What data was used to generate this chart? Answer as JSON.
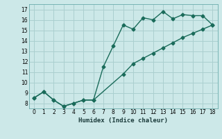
{
  "title": "",
  "xlabel": "Humidex (Indice chaleur)",
  "ylabel": "",
  "bg_color": "#cce8e8",
  "line_color": "#1a6b5a",
  "grid_color": "#aacfcf",
  "xlim": [
    -0.5,
    18.5
  ],
  "ylim": [
    7.5,
    17.5
  ],
  "xticks": [
    0,
    1,
    2,
    3,
    4,
    5,
    6,
    7,
    8,
    9,
    10,
    11,
    12,
    13,
    14,
    15,
    16,
    17,
    18
  ],
  "yticks": [
    8,
    9,
    10,
    11,
    12,
    13,
    14,
    15,
    16,
    17
  ],
  "line1_x": [
    0,
    1,
    2,
    3,
    4,
    5,
    6,
    7,
    8,
    9,
    10,
    11,
    12,
    13,
    14,
    15,
    16,
    17,
    18
  ],
  "line1_y": [
    8.5,
    9.1,
    8.3,
    7.7,
    8.0,
    8.3,
    8.3,
    11.5,
    13.5,
    15.5,
    15.1,
    16.2,
    16.0,
    16.8,
    16.1,
    16.5,
    16.4,
    16.4,
    15.5
  ],
  "line2_x": [
    0,
    1,
    2,
    3,
    4,
    5,
    6,
    9,
    10,
    11,
    12,
    13,
    14,
    15,
    16,
    17,
    18
  ],
  "line2_y": [
    8.5,
    9.1,
    8.3,
    7.7,
    8.0,
    8.3,
    8.3,
    10.8,
    11.8,
    12.3,
    12.8,
    13.3,
    13.8,
    14.3,
    14.7,
    15.1,
    15.5
  ],
  "marker_size": 2.5,
  "line_width": 1.0
}
